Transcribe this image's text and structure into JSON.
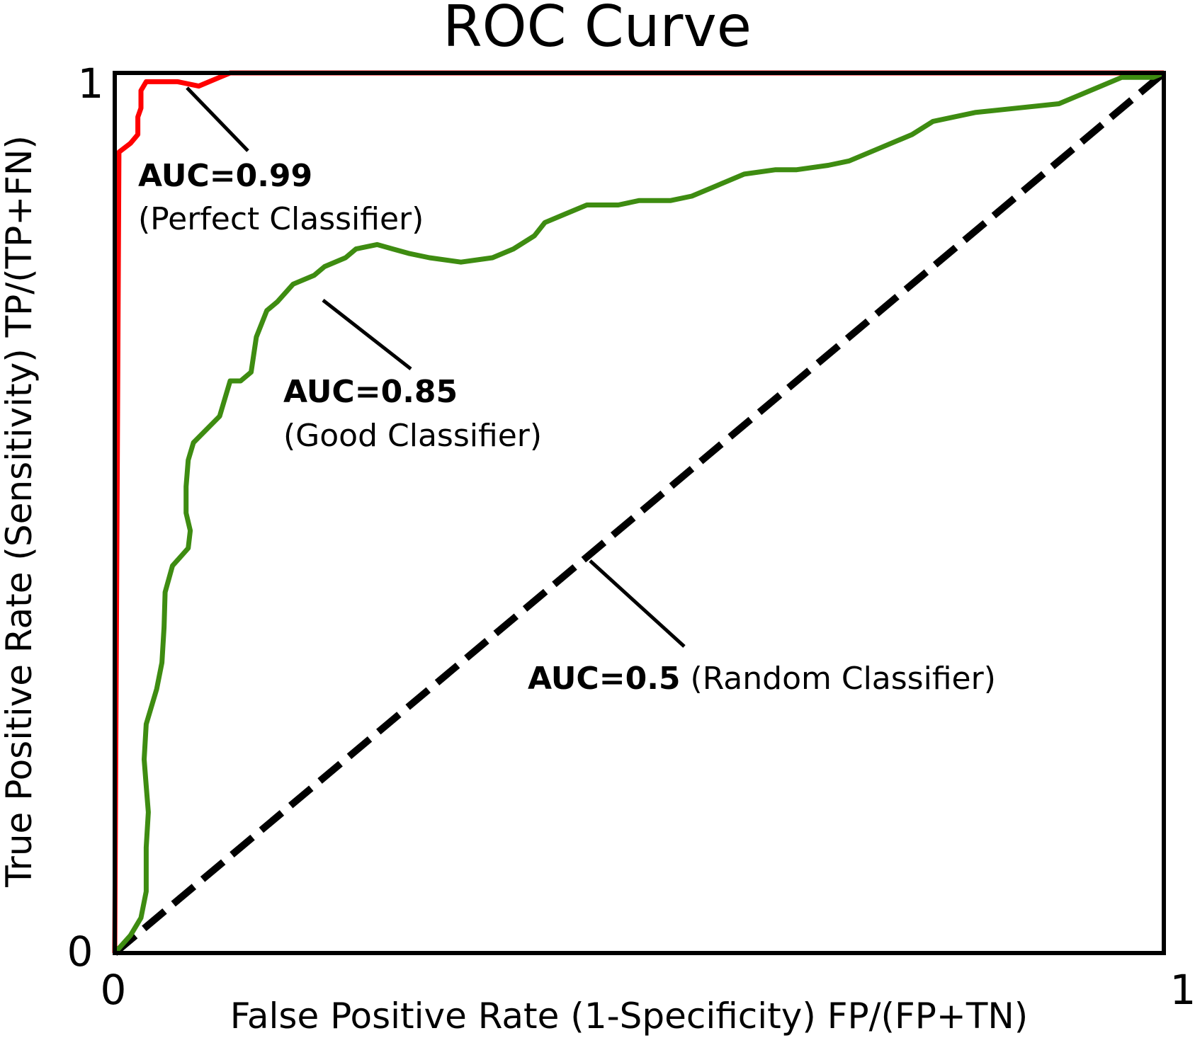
{
  "chart_data": {
    "type": "line",
    "title": "ROC Curve",
    "xlabel": "False Positive Rate (1-Specificity) FP/(FP+TN)",
    "ylabel": "True Positive Rate (Sensitivity) TP/(TP+FN)",
    "xlim": [
      0,
      1
    ],
    "ylim": [
      0,
      1
    ],
    "x_ticks": [
      "0",
      "1"
    ],
    "y_ticks": [
      "0",
      "1"
    ],
    "grid": false,
    "legend": "none",
    "series": [
      {
        "color": "#ff0000",
        "style": "solid",
        "points": [
          [
            0,
            0
          ],
          [
            0.004,
            0.91
          ],
          [
            0.015,
            0.92
          ],
          [
            0.022,
            0.93
          ],
          [
            0.022,
            0.95
          ],
          [
            0.025,
            0.96
          ],
          [
            0.025,
            0.98
          ],
          [
            0.03,
            0.99
          ],
          [
            0.06,
            0.99
          ],
          [
            0.08,
            0.985
          ],
          [
            0.09,
            0.99
          ],
          [
            0.1,
            0.995
          ],
          [
            0.11,
            1.0
          ],
          [
            1.0,
            1.0
          ]
        ]
      },
      {
        "color": "#3e8c11",
        "style": "solid",
        "points": [
          [
            0,
            0
          ],
          [
            0.015,
            0.02
          ],
          [
            0.025,
            0.04
          ],
          [
            0.03,
            0.07
          ],
          [
            0.03,
            0.12
          ],
          [
            0.032,
            0.16
          ],
          [
            0.03,
            0.19
          ],
          [
            0.028,
            0.22
          ],
          [
            0.03,
            0.26
          ],
          [
            0.04,
            0.3
          ],
          [
            0.045,
            0.33
          ],
          [
            0.047,
            0.37
          ],
          [
            0.048,
            0.41
          ],
          [
            0.055,
            0.44
          ],
          [
            0.07,
            0.46
          ],
          [
            0.072,
            0.48
          ],
          [
            0.068,
            0.5
          ],
          [
            0.068,
            0.53
          ],
          [
            0.07,
            0.56
          ],
          [
            0.075,
            0.58
          ],
          [
            0.1,
            0.61
          ],
          [
            0.11,
            0.65
          ],
          [
            0.12,
            0.65
          ],
          [
            0.13,
            0.66
          ],
          [
            0.135,
            0.7
          ],
          [
            0.145,
            0.73
          ],
          [
            0.155,
            0.74
          ],
          [
            0.17,
            0.76
          ],
          [
            0.19,
            0.77
          ],
          [
            0.2,
            0.78
          ],
          [
            0.22,
            0.79
          ],
          [
            0.23,
            0.8
          ],
          [
            0.25,
            0.805
          ],
          [
            0.265,
            0.8
          ],
          [
            0.28,
            0.795
          ],
          [
            0.3,
            0.79
          ],
          [
            0.33,
            0.785
          ],
          [
            0.36,
            0.79
          ],
          [
            0.38,
            0.8
          ],
          [
            0.4,
            0.815
          ],
          [
            0.41,
            0.83
          ],
          [
            0.43,
            0.84
          ],
          [
            0.45,
            0.85
          ],
          [
            0.48,
            0.85
          ],
          [
            0.5,
            0.855
          ],
          [
            0.53,
            0.855
          ],
          [
            0.55,
            0.86
          ],
          [
            0.57,
            0.87
          ],
          [
            0.6,
            0.885
          ],
          [
            0.63,
            0.89
          ],
          [
            0.65,
            0.89
          ],
          [
            0.68,
            0.895
          ],
          [
            0.7,
            0.9
          ],
          [
            0.73,
            0.915
          ],
          [
            0.76,
            0.93
          ],
          [
            0.78,
            0.945
          ],
          [
            0.82,
            0.955
          ],
          [
            0.86,
            0.96
          ],
          [
            0.9,
            0.965
          ],
          [
            0.93,
            0.98
          ],
          [
            0.96,
            0.995
          ],
          [
            0.99,
            0.995
          ],
          [
            1.0,
            1.0
          ]
        ]
      },
      {
        "color": "#000000",
        "style": "dashed",
        "points": [
          [
            0,
            0
          ],
          [
            1,
            1
          ]
        ]
      }
    ],
    "annotations": [
      {
        "label": "AUC=0.99",
        "desc": "(Perfect Classifier)",
        "target": [
          0.065,
          0.99
        ]
      },
      {
        "label": "AUC=0.85",
        "desc": "(Good Classifier)",
        "target": [
          0.195,
          0.74
        ]
      },
      {
        "label": "AUC=0.5",
        "desc": "(Random Classifier)",
        "target": [
          0.45,
          0.45
        ]
      }
    ]
  }
}
